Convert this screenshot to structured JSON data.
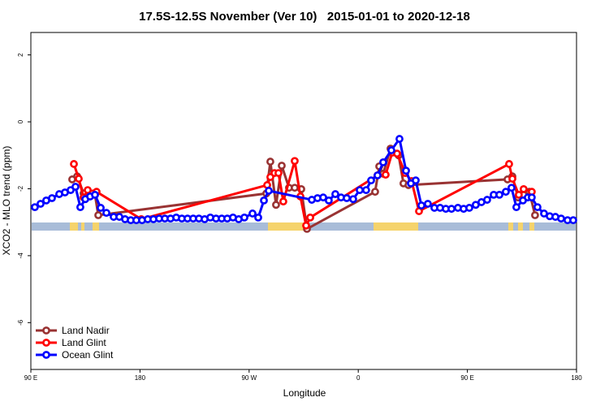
{
  "chart_data": {
    "type": "line",
    "title": "17.5S-12.5S November (Ver 10)   2015-01-01 to 2020-12-18",
    "x_label": "Longitude",
    "y_label": "XCO2 - MLO trend (ppm)",
    "xlim": [
      90,
      540
    ],
    "ylim": [
      -7.4,
      2.67
    ],
    "xticks": [
      {
        "value": 90,
        "label": "90 E"
      },
      180,
      {
        "value": 270,
        "label": "90 W"
      },
      {
        "value": 360,
        "label": "0"
      },
      {
        "value": 450,
        "label": "90 E"
      },
      {
        "value": 540,
        "label": "180"
      }
    ],
    "yticks": [
      2,
      0,
      -2,
      -4,
      -6
    ],
    "legend": "bottom-left",
    "series": [
      {
        "name": "Land Nadir",
        "color": "#993333",
        "x": [
          124.1,
          128.2,
          133.5,
          138.2,
          142.9,
          145.6,
          284.2,
          287.5,
          292.2,
          296.9,
          302.9,
          307.6,
          313.0,
          317.7,
          373.9,
          377.3,
          380.6,
          386.6,
          393.3,
          397.3,
          401.4,
          483.1,
          487.1,
          491.8,
          496.4,
          501.1,
          505.8
        ],
        "values": [
          -1.72,
          -1.63,
          -2.14,
          -2.18,
          -2.18,
          -2.79,
          -2.14,
          -1.19,
          -2.48,
          -1.31,
          -1.97,
          -1.97,
          -2.01,
          -3.2,
          -2.09,
          -1.33,
          -1.55,
          -0.8,
          -1.0,
          -1.84,
          -1.89,
          -1.72,
          -1.63,
          -2.26,
          -2.18,
          -2.09,
          -2.79
        ]
      },
      {
        "name": "Land Glint",
        "color": "#ff0000",
        "x": [
          125.5,
          129.5,
          133.5,
          136.9,
          140.9,
          144.2,
          181.1,
          284.9,
          287.5,
          290.9,
          294.2,
          298.2,
          307.6,
          312.3,
          317.0,
          320.4,
          375.9,
          382.6,
          388.0,
          392.0,
          398.7,
          404.0,
          410.1,
          484.4,
          487.1,
          492.4,
          496.4,
          503.1
        ],
        "values": [
          -1.26,
          -1.7,
          -2.26,
          -2.04,
          -2.14,
          -2.09,
          -2.91,
          -1.89,
          -1.65,
          -1.53,
          -1.53,
          -2.38,
          -1.17,
          -2.23,
          -3.1,
          -2.86,
          -1.6,
          -1.58,
          -0.92,
          -0.95,
          -1.53,
          -1.77,
          -2.67,
          -1.26,
          -1.7,
          -2.18,
          -2.01,
          -2.09
        ]
      },
      {
        "name": "Ocean Glint",
        "color": "#0000ff",
        "x": [
          93.3,
          98.0,
          102.7,
          107.4,
          113.4,
          118.1,
          122.8,
          126.8,
          130.8,
          134.9,
          138.9,
          142.9,
          147.6,
          152.3,
          158.3,
          163.0,
          167.7,
          172.4,
          177.0,
          181.7,
          186.4,
          191.1,
          195.8,
          200.5,
          205.2,
          209.9,
          214.5,
          219.2,
          223.9,
          228.6,
          233.3,
          238.0,
          242.7,
          247.4,
          252.0,
          256.7,
          261.4,
          266.1,
          272.8,
          277.5,
          282.2,
          286.2,
          321.7,
          326.4,
          331.1,
          335.7,
          341.1,
          345.8,
          350.5,
          355.8,
          361.2,
          366.5,
          370.6,
          375.9,
          380.6,
          387.3,
          394.0,
          399.4,
          403.4,
          407.4,
          412.1,
          417.4,
          422.8,
          427.5,
          432.2,
          436.9,
          442.2,
          446.9,
          451.6,
          456.9,
          461.6,
          466.3,
          471.7,
          476.4,
          481.7,
          486.4,
          490.4,
          495.8,
          499.8,
          503.1,
          507.8,
          513.2,
          517.9,
          522.6,
          527.3,
          532.6,
          537.3
        ],
        "values": [
          -2.55,
          -2.45,
          -2.35,
          -2.28,
          -2.16,
          -2.11,
          -2.04,
          -1.94,
          -2.55,
          -2.31,
          -2.23,
          -2.18,
          -2.57,
          -2.72,
          -2.84,
          -2.84,
          -2.91,
          -2.94,
          -2.94,
          -2.94,
          -2.91,
          -2.91,
          -2.89,
          -2.89,
          -2.89,
          -2.86,
          -2.89,
          -2.89,
          -2.89,
          -2.89,
          -2.91,
          -2.86,
          -2.89,
          -2.89,
          -2.89,
          -2.86,
          -2.91,
          -2.86,
          -2.74,
          -2.86,
          -2.35,
          -2.06,
          -2.33,
          -2.28,
          -2.26,
          -2.35,
          -2.16,
          -2.26,
          -2.28,
          -2.31,
          -2.04,
          -2.04,
          -1.75,
          -1.6,
          -1.21,
          -0.85,
          -0.51,
          -1.46,
          -1.84,
          -1.75,
          -2.5,
          -2.45,
          -2.57,
          -2.57,
          -2.6,
          -2.6,
          -2.57,
          -2.6,
          -2.57,
          -2.48,
          -2.4,
          -2.33,
          -2.18,
          -2.18,
          -2.09,
          -1.97,
          -2.55,
          -2.35,
          -2.26,
          -2.26,
          -2.55,
          -2.74,
          -2.82,
          -2.84,
          -2.89,
          -2.94,
          -2.94
        ]
      }
    ]
  }
}
